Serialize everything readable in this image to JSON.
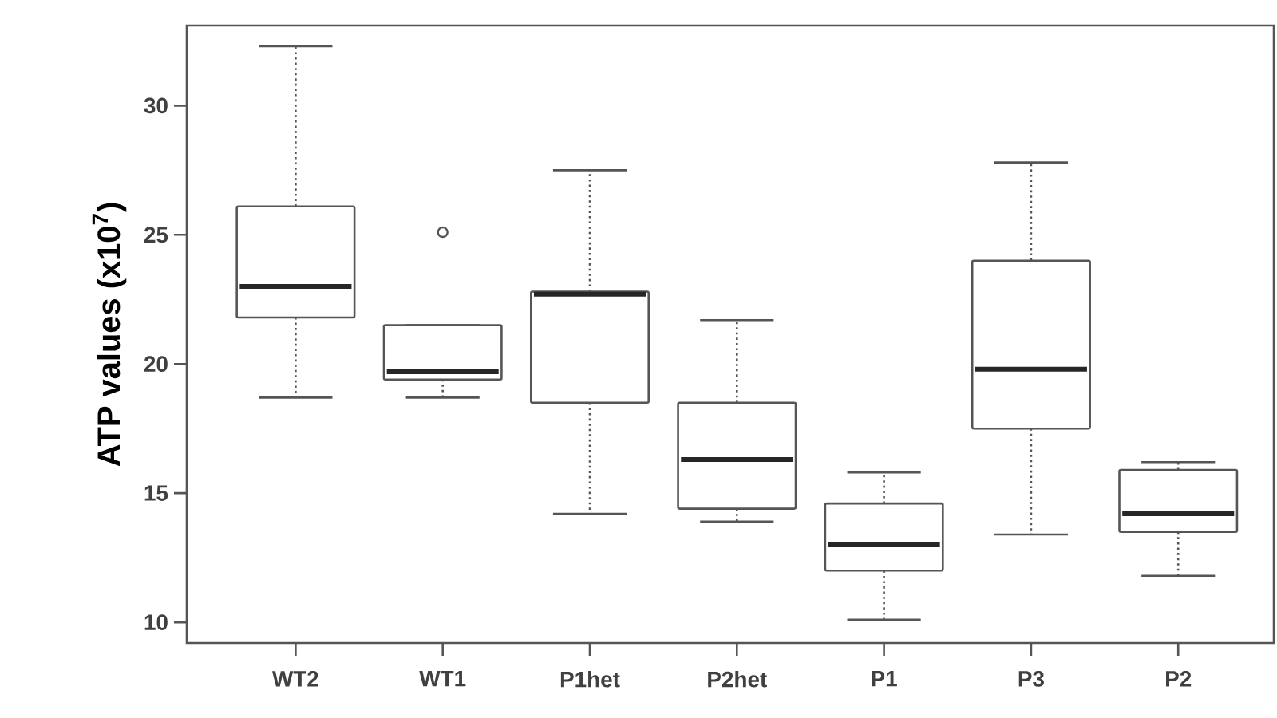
{
  "chart_data": {
    "type": "box",
    "ylabel": "ATP values (x10$^{7}$)",
    "categories": [
      "WT2",
      "WT1",
      "P1het",
      "P2het",
      "P1",
      "P3",
      "P2"
    ],
    "boxes": [
      {
        "low": 18.7,
        "q1": 21.8,
        "median": 23.0,
        "q3": 26.1,
        "high": 32.3
      },
      {
        "low": 18.7,
        "q1": 19.4,
        "median": 19.7,
        "q3": 21.5,
        "high": 21.5,
        "outliers": [
          25.1
        ]
      },
      {
        "low": 14.2,
        "q1": 18.5,
        "median": 22.7,
        "q3": 22.8,
        "high": 27.5
      },
      {
        "low": 13.9,
        "q1": 14.4,
        "median": 16.3,
        "q3": 18.5,
        "high": 21.7
      },
      {
        "low": 10.1,
        "q1": 12.0,
        "median": 13.0,
        "q3": 14.6,
        "high": 15.8
      },
      {
        "low": 13.4,
        "q1": 17.5,
        "median": 19.8,
        "q3": 24.0,
        "high": 27.8
      },
      {
        "low": 11.8,
        "q1": 13.5,
        "median": 14.2,
        "q3": 15.9,
        "high": 16.2
      }
    ],
    "color": "#555555",
    "ylim": [
      9.2,
      33.1
    ],
    "yticks": [
      10,
      15,
      20,
      25,
      30
    ]
  }
}
